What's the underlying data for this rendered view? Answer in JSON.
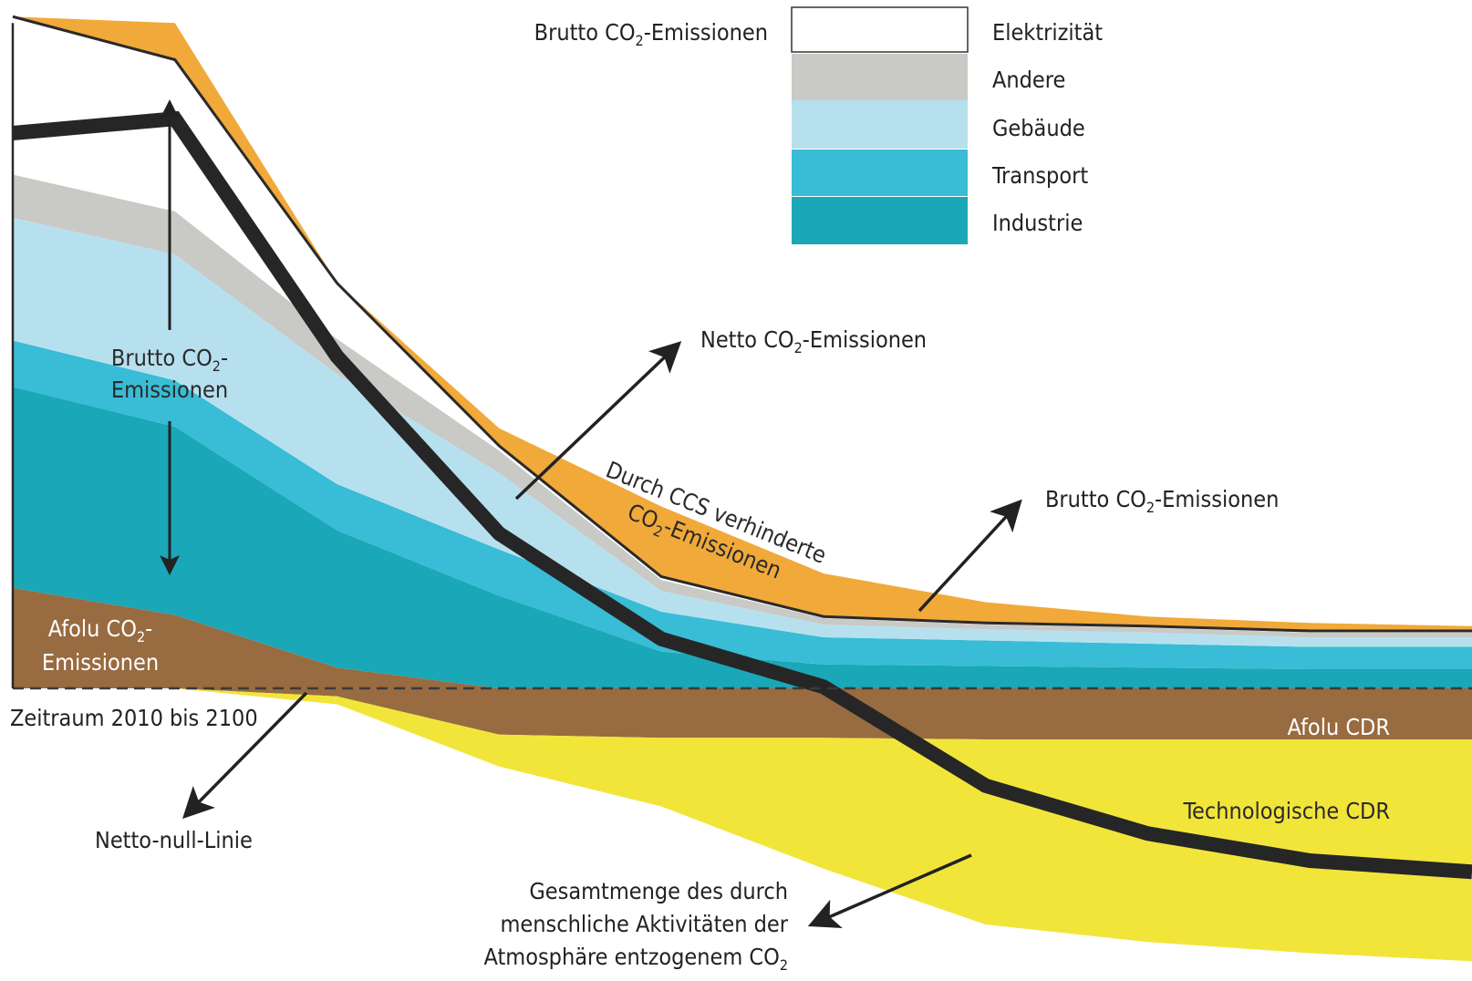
{
  "chart_data": {
    "type": "area",
    "title": "",
    "xlabel": "Zeitraum 2010 bis 2100",
    "x_range": [
      2010,
      2100
    ],
    "x_ticks_shown": false,
    "y_ticks_shown": false,
    "grid": false,
    "legend_position": "top-center",
    "x": [
      2010,
      2020,
      2030,
      2040,
      2050,
      2060,
      2070,
      2080,
      2090,
      2100
    ],
    "series": [
      {
        "name": "Industrie",
        "color": "#1aa7b8",
        "values": [
          12.6,
          11.8,
          8.6,
          5.8,
          2.3,
          1.5,
          1.4,
          1.3,
          1.2,
          1.2
        ]
      },
      {
        "name": "Transport",
        "color": "#39bcd5",
        "values": [
          2.9,
          2.9,
          2.9,
          2.9,
          2.5,
          1.7,
          1.6,
          1.5,
          1.4,
          1.4
        ]
      },
      {
        "name": "Gebäude",
        "color": "#b7e0ef",
        "values": [
          7.7,
          7.9,
          6.9,
          4.8,
          1.3,
          0.8,
          0.7,
          0.7,
          0.6,
          0.6
        ]
      },
      {
        "name": "Andere",
        "color": "#c9c9c6",
        "values": [
          2.7,
          2.7,
          2.2,
          1.4,
          0.7,
          0.4,
          0.3,
          0.3,
          0.3,
          0.3
        ]
      },
      {
        "name": "Elektrizität",
        "color": "#ffffff",
        "values": [
          9.9,
          9.5,
          3.5,
          0.3,
          0.2,
          0.1,
          0.1,
          0.1,
          0.1,
          0.1
        ]
      },
      {
        "name": "Afolu CO2-Emissionen",
        "color": "#986b40",
        "values": [
          6.3,
          4.6,
          1.3,
          0,
          0,
          0,
          0,
          0,
          0,
          0
        ]
      },
      {
        "name": "Afolu CDR",
        "color": "#986b40",
        "values": [
          0,
          0,
          -0.5,
          -2.9,
          -3.1,
          -3.1,
          -3.2,
          -3.2,
          -3.2,
          -3.2
        ]
      },
      {
        "name": "Technologische CDR",
        "color": "#f2e53a",
        "values": [
          0,
          0,
          -0.5,
          -2.0,
          -4.3,
          -8.2,
          -11.6,
          -12.7,
          -13.4,
          -13.9
        ]
      }
    ],
    "gross_co2": [
      41.7,
      41.7,
      26.6,
      15.2,
      7.0,
      4.3,
      3.7,
      3.5,
      3.2,
      2.9
    ],
    "net_co2": [
      41.7,
      41.7,
      26.6,
      15.2,
      7.0,
      4.3,
      3.7,
      3.5,
      3.2,
      2.9
    ],
    "net_line": [
      34.8,
      35.7,
      20.8,
      9.7,
      3.1,
      0.1,
      -6.1,
      -9.1,
      -10.8,
      -11.5
    ],
    "ccs_upper": [
      41.7,
      41.7,
      22.0,
      16.3,
      11.4,
      7.2,
      5.4,
      4.5,
      4.1,
      3.9
    ],
    "labels": {
      "legend_gross": "Brutto CO",
      "legend_gross_sub": "2",
      "legend_gross_tail": "-Emissionen",
      "legend_items": [
        "Elektrizität",
        "Andere",
        "Gebäude",
        "Transport",
        "Industrie"
      ],
      "gross_arrow_l1": "Brutto CO",
      "gross_arrow_l1_sub": "2",
      "gross_arrow_l1_tail": "-",
      "gross_arrow_l2": "Emissionen",
      "afolu_l1": "Afolu CO",
      "afolu_l1_sub": "2",
      "afolu_l1_tail": "-",
      "afolu_l2": "Emissionen",
      "netto": "Netto CO",
      "netto_sub": "2",
      "netto_tail": "-Emissionen",
      "brutto_right": "Brutto CO",
      "brutto_right_sub": "2",
      "brutto_right_tail": "-Emissionen",
      "ccs_l1": "Durch CCS verhinderte",
      "ccs_l2": "CO",
      "ccs_l2_sub": "2",
      "ccs_l2_tail": "-Emissionen",
      "zeitraum": "Zeitraum 2010 bis 2100",
      "netto_null": "Netto-null-Linie",
      "afolu_cdr": "Afolu CDR",
      "tech_cdr": "Technologische CDR",
      "gesamt_l1": "Gesamtmenge des durch",
      "gesamt_l2": "menschliche Aktivitäten der",
      "gesamt_l3": "Atmosphäre entzogenem CO",
      "gesamt_l3_sub": "2"
    }
  }
}
